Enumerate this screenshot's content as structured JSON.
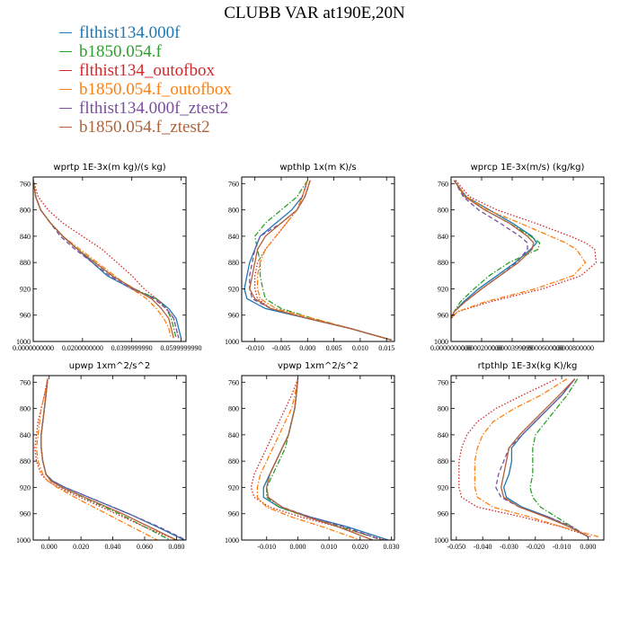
{
  "figure": {
    "title": "CLUBB VAR at190E,20N",
    "legend": [
      {
        "name": "flthist134.000f",
        "color": "#1f77b4"
      },
      {
        "name": "b1850.054.f",
        "color": "#2ca02c"
      },
      {
        "name": "flthist134_outofbox",
        "color": "#d62728"
      },
      {
        "name": "b1850.054.f_outofbox",
        "color": "#ff7f0e"
      },
      {
        "name": "flthist134.000f_ztest2",
        "color": "#7b4ea0"
      },
      {
        "name": "b1850.054.f_ztest2",
        "color": "#b0623a"
      }
    ]
  },
  "chart_data": [
    {
      "id": "wprtp",
      "type": "line",
      "title": "wprtp  1E-3x(m kg)/(s kg)",
      "xlim": [
        0,
        0.062
      ],
      "ylim": [
        1000,
        750
      ],
      "grid": false,
      "xticks": [
        0,
        0.02,
        0.04,
        0.06
      ],
      "xticklabels": [
        "0.0000000000",
        "0.0200000000",
        "0.0399999990",
        "0.0599999990"
      ],
      "yticks": [
        760,
        800,
        840,
        880,
        920,
        960,
        1000
      ],
      "yticklabels": [
        "760",
        "800",
        "840",
        "880",
        "920",
        "960",
        "1000"
      ],
      "y": [
        755,
        780,
        800,
        820,
        840,
        860,
        880,
        900,
        920,
        935,
        950,
        965,
        980,
        995
      ],
      "series": [
        {
          "color": "#1f77b4",
          "dash": "solid",
          "x": [
            0.0,
            0.001,
            0.003,
            0.007,
            0.012,
            0.018,
            0.024,
            0.03,
            0.04,
            0.05,
            0.055,
            0.058,
            0.059,
            0.06
          ]
        },
        {
          "color": "#2ca02c",
          "dash": "dashdot",
          "x": [
            0.0,
            0.001,
            0.003,
            0.007,
            0.012,
            0.018,
            0.025,
            0.032,
            0.041,
            0.05,
            0.054,
            0.056,
            0.057,
            0.058
          ]
        },
        {
          "color": "#d62728",
          "dash": "dot",
          "x": [
            0.0,
            0.002,
            0.006,
            0.012,
            0.02,
            0.028,
            0.034,
            0.04,
            0.045,
            0.05,
            0.054,
            0.057,
            0.058,
            0.059
          ]
        },
        {
          "color": "#ff7f0e",
          "dash": "dashdot",
          "x": [
            0.0,
            0.001,
            0.003,
            0.007,
            0.012,
            0.019,
            0.026,
            0.033,
            0.04,
            0.046,
            0.05,
            0.053,
            0.055,
            0.056
          ]
        },
        {
          "color": "#7b4ea0",
          "dash": "dash",
          "x": [
            0.0,
            0.001,
            0.003,
            0.007,
            0.011,
            0.017,
            0.024,
            0.031,
            0.04,
            0.049,
            0.054,
            0.057,
            0.058,
            0.059
          ]
        },
        {
          "color": "#b0623a",
          "dash": "solid",
          "x": [
            0.0,
            0.001,
            0.003,
            0.007,
            0.012,
            0.018,
            0.025,
            0.032,
            0.041,
            0.048,
            0.052,
            0.055,
            0.056,
            0.057
          ]
        }
      ]
    },
    {
      "id": "wpthlp",
      "type": "line",
      "title": "wpthlp  1x(m K)/s",
      "xlim": [
        -0.0125,
        0.0165
      ],
      "ylim": [
        1000,
        750
      ],
      "grid": false,
      "xticks": [
        -0.01,
        -0.005,
        0,
        0.005,
        0.01,
        0.015
      ],
      "xticklabels": [
        "-0.010",
        "-0.005",
        "0.000",
        "0.005",
        "0.010",
        "0.015"
      ],
      "yticks": [
        760,
        800,
        840,
        880,
        920,
        960,
        1000
      ],
      "yticklabels": [
        "760",
        "800",
        "840",
        "880",
        "920",
        "960",
        "1000"
      ],
      "y": [
        755,
        780,
        800,
        820,
        840,
        860,
        880,
        900,
        920,
        935,
        950,
        965,
        980,
        998
      ],
      "series": [
        {
          "color": "#1f77b4",
          "dash": "solid",
          "x": [
            0.0,
            -0.001,
            -0.003,
            -0.006,
            -0.009,
            -0.01,
            -0.011,
            -0.0115,
            -0.012,
            -0.0115,
            -0.008,
            0.0,
            0.008,
            0.016
          ]
        },
        {
          "color": "#2ca02c",
          "dash": "dashdot",
          "x": [
            0.0,
            -0.002,
            -0.005,
            -0.008,
            -0.01,
            -0.0095,
            -0.009,
            -0.009,
            -0.0085,
            -0.008,
            -0.005,
            0.001,
            0.008,
            0.016
          ]
        },
        {
          "color": "#d62728",
          "dash": "dot",
          "x": [
            0.0,
            -0.001,
            -0.002,
            -0.004,
            -0.006,
            -0.008,
            -0.0095,
            -0.01,
            -0.01,
            -0.0095,
            -0.007,
            0.0,
            0.008,
            0.016
          ]
        },
        {
          "color": "#ff7f0e",
          "dash": "dashdot",
          "x": [
            0.0,
            -0.001,
            -0.002,
            -0.004,
            -0.006,
            -0.008,
            -0.009,
            -0.0095,
            -0.0095,
            -0.009,
            -0.006,
            0.001,
            0.008,
            0.016
          ]
        },
        {
          "color": "#7b4ea0",
          "dash": "dash",
          "x": [
            0.0005,
            -0.0005,
            -0.002,
            -0.005,
            -0.009,
            -0.01,
            -0.0105,
            -0.011,
            -0.011,
            -0.0105,
            -0.007,
            0.0,
            0.008,
            0.016
          ]
        },
        {
          "color": "#b0623a",
          "dash": "solid",
          "x": [
            0.0005,
            -0.0005,
            -0.002,
            -0.005,
            -0.008,
            -0.0095,
            -0.01,
            -0.0105,
            -0.011,
            -0.01,
            -0.007,
            0.0,
            0.008,
            0.016
          ]
        }
      ]
    },
    {
      "id": "wprcp",
      "type": "line",
      "title": "wprcp  1E-3x(m/s) (kg/kg)",
      "xlim": [
        0,
        0.0001
      ],
      "ylim": [
        1000,
        750
      ],
      "grid": false,
      "xticks": [
        0,
        2e-05,
        4e-05,
        6e-05,
        8e-05
      ],
      "xticklabels": [
        "0.0000000000",
        "0.0000200000",
        "0.0000399999",
        "0.0000600000",
        "0.0000800000"
      ],
      "yticks": [
        760,
        800,
        840,
        880,
        920,
        960,
        1000
      ],
      "yticklabels": [
        "760",
        "800",
        "840",
        "880",
        "920",
        "960",
        "1000"
      ],
      "y": [
        755,
        780,
        800,
        820,
        840,
        850,
        860,
        880,
        900,
        920,
        940,
        955,
        965
      ],
      "series": [
        {
          "color": "#1f77b4",
          "dash": "solid",
          "x": [
            2e-06,
            1e-05,
            2.5e-05,
            4e-05,
            5.3e-05,
            5.6e-05,
            5.2e-05,
            4.2e-05,
            3e-05,
            1.8e-05,
            8e-06,
            2e-06,
            0.0
          ]
        },
        {
          "color": "#2ca02c",
          "dash": "dashdot",
          "x": [
            2e-06,
            1e-05,
            2.2e-05,
            3.8e-05,
            5.2e-05,
            5.8e-05,
            5.7e-05,
            3.8e-05,
            2.5e-05,
            1.5e-05,
            6e-06,
            2e-06,
            0.0
          ]
        },
        {
          "color": "#d62728",
          "dash": "dot",
          "x": [
            3e-06,
            1.2e-05,
            3e-05,
            5.5e-05,
            7.8e-05,
            8.8e-05,
            9.4e-05,
            9.5e-05,
            8.5e-05,
            6e-05,
            2.5e-05,
            4e-06,
            0.0
          ]
        },
        {
          "color": "#ff7f0e",
          "dash": "dashdot",
          "x": [
            2e-06,
            1e-05,
            2.4e-05,
            4.5e-05,
            6.5e-05,
            7.5e-05,
            8.2e-05,
            8.8e-05,
            8e-05,
            5.5e-05,
            2.2e-05,
            4e-06,
            0.0
          ]
        },
        {
          "color": "#7b4ea0",
          "dash": "dash",
          "x": [
            2e-06,
            8e-06,
            1.8e-05,
            3.2e-05,
            4.5e-05,
            5e-05,
            5e-05,
            4.3e-05,
            3.2e-05,
            2e-05,
            9e-06,
            2e-06,
            0.0
          ]
        },
        {
          "color": "#b0623a",
          "dash": "solid",
          "x": [
            2e-06,
            9e-06,
            2.2e-05,
            3.8e-05,
            5e-05,
            5.4e-05,
            5.3e-05,
            4.4e-05,
            3.2e-05,
            2e-05,
            9e-06,
            2e-06,
            0.0
          ]
        }
      ]
    },
    {
      "id": "upwp",
      "type": "line",
      "title": "upwp  1xm^2/s^2",
      "xlim": [
        -0.01,
        0.086
      ],
      "ylim": [
        1000,
        750
      ],
      "grid": false,
      "xticks": [
        0,
        0.02,
        0.04,
        0.06,
        0.08
      ],
      "xticklabels": [
        "0.000",
        "0.020",
        "0.040",
        "0.060",
        "0.080"
      ],
      "yticks": [
        760,
        800,
        840,
        880,
        920,
        960,
        1000
      ],
      "yticklabels": [
        "760",
        "800",
        "840",
        "880",
        "920",
        "960",
        "1000"
      ],
      "y": [
        755,
        780,
        800,
        820,
        840,
        860,
        880,
        900,
        910,
        920,
        940,
        960,
        980,
        1000
      ],
      "series": [
        {
          "color": "#1f77b4",
          "dash": "solid",
          "x": [
            -0.001,
            -0.002,
            -0.003,
            -0.004,
            -0.005,
            -0.005,
            -0.004,
            -0.002,
            0.002,
            0.01,
            0.03,
            0.05,
            0.068,
            0.085
          ]
        },
        {
          "color": "#2ca02c",
          "dash": "dashdot",
          "x": [
            -0.001,
            -0.002,
            -0.003,
            -0.004,
            -0.005,
            -0.005,
            -0.004,
            -0.002,
            0.001,
            0.008,
            0.026,
            0.044,
            0.06,
            0.076
          ]
        },
        {
          "color": "#d62728",
          "dash": "dot",
          "x": [
            -0.001,
            -0.003,
            -0.005,
            -0.007,
            -0.008,
            -0.009,
            -0.008,
            -0.005,
            -0.001,
            0.006,
            0.024,
            0.042,
            0.06,
            0.08
          ]
        },
        {
          "color": "#ff7f0e",
          "dash": "dashdot",
          "x": [
            -0.001,
            -0.003,
            -0.005,
            -0.006,
            -0.007,
            -0.008,
            -0.007,
            -0.004,
            -0.001,
            0.005,
            0.02,
            0.036,
            0.052,
            0.068
          ]
        },
        {
          "color": "#7b4ea0",
          "dash": "dash",
          "x": [
            -0.001,
            -0.002,
            -0.003,
            -0.004,
            -0.005,
            -0.005,
            -0.004,
            -0.002,
            0.002,
            0.01,
            0.03,
            0.05,
            0.069,
            0.086
          ]
        },
        {
          "color": "#b0623a",
          "dash": "solid",
          "x": [
            -0.001,
            -0.002,
            -0.003,
            -0.004,
            -0.005,
            -0.005,
            -0.004,
            -0.002,
            0.001,
            0.008,
            0.027,
            0.046,
            0.063,
            0.08
          ]
        }
      ]
    },
    {
      "id": "vpwp",
      "type": "line",
      "title": "vpwp  1xm^2/s^2",
      "xlim": [
        -0.018,
        0.031
      ],
      "ylim": [
        1000,
        750
      ],
      "grid": false,
      "xticks": [
        -0.01,
        0,
        0.01,
        0.02,
        0.03
      ],
      "xticklabels": [
        "-0.010",
        "0.000",
        "0.010",
        "0.020",
        "0.030"
      ],
      "yticks": [
        760,
        800,
        840,
        880,
        920,
        960,
        1000
      ],
      "yticklabels": [
        "760",
        "800",
        "840",
        "880",
        "920",
        "960",
        "1000"
      ],
      "y": [
        755,
        780,
        800,
        820,
        840,
        860,
        880,
        900,
        920,
        935,
        950,
        965,
        980,
        1000
      ],
      "series": [
        {
          "color": "#1f77b4",
          "dash": "solid",
          "x": [
            0.0,
            -0.0005,
            -0.001,
            -0.002,
            -0.003,
            -0.005,
            -0.007,
            -0.009,
            -0.011,
            -0.011,
            -0.006,
            0.004,
            0.016,
            0.029
          ]
        },
        {
          "color": "#2ca02c",
          "dash": "dashdot",
          "x": [
            0.0,
            -0.0005,
            -0.001,
            -0.002,
            -0.003,
            -0.004,
            -0.006,
            -0.008,
            -0.01,
            -0.01,
            -0.006,
            0.003,
            0.014,
            0.027
          ]
        },
        {
          "color": "#d62728",
          "dash": "dot",
          "x": [
            0.0,
            -0.002,
            -0.004,
            -0.006,
            -0.008,
            -0.01,
            -0.012,
            -0.014,
            -0.015,
            -0.014,
            -0.009,
            0.001,
            0.013,
            0.028
          ]
        },
        {
          "color": "#ff7f0e",
          "dash": "dashdot",
          "x": [
            0.0,
            -0.001,
            -0.002,
            -0.004,
            -0.006,
            -0.008,
            -0.01,
            -0.012,
            -0.013,
            -0.013,
            -0.01,
            -0.002,
            0.008,
            0.02
          ]
        },
        {
          "color": "#7b4ea0",
          "dash": "dash",
          "x": [
            0.0,
            -0.0005,
            -0.001,
            -0.002,
            -0.003,
            -0.005,
            -0.007,
            -0.009,
            -0.01,
            -0.0095,
            -0.005,
            0.004,
            0.015,
            0.027
          ]
        },
        {
          "color": "#b0623a",
          "dash": "solid",
          "x": [
            0.0,
            -0.0005,
            -0.001,
            -0.002,
            -0.003,
            -0.005,
            -0.007,
            -0.009,
            -0.01,
            -0.0095,
            -0.005,
            0.003,
            0.013,
            0.024
          ]
        }
      ]
    },
    {
      "id": "rtpthlp",
      "type": "line",
      "title": "rtpthlp  1E-3x(kg K)/kg",
      "xlim": [
        -0.052,
        0.006
      ],
      "ylim": [
        1000,
        750
      ],
      "grid": false,
      "xticks": [
        -0.05,
        -0.04,
        -0.03,
        -0.02,
        -0.01,
        0
      ],
      "xticklabels": [
        "-0.050",
        "-0.040",
        "-0.030",
        "-0.020",
        "-0.010",
        "0.000"
      ],
      "yticks": [
        760,
        800,
        840,
        880,
        920,
        960,
        1000
      ],
      "yticklabels": [
        "760",
        "800",
        "840",
        "880",
        "920",
        "960",
        "1000"
      ],
      "y": [
        755,
        780,
        800,
        820,
        840,
        860,
        880,
        900,
        920,
        935,
        950,
        965,
        980,
        995
      ],
      "series": [
        {
          "color": "#1f77b4",
          "dash": "solid",
          "x": [
            -0.005,
            -0.01,
            -0.015,
            -0.02,
            -0.025,
            -0.029,
            -0.029,
            -0.03,
            -0.032,
            -0.031,
            -0.025,
            -0.015,
            -0.007,
            0.0
          ]
        },
        {
          "color": "#2ca02c",
          "dash": "dashdot",
          "x": [
            -0.004,
            -0.008,
            -0.012,
            -0.016,
            -0.02,
            -0.021,
            -0.021,
            -0.021,
            -0.022,
            -0.021,
            -0.018,
            -0.012,
            -0.006,
            0.0
          ]
        },
        {
          "color": "#d62728",
          "dash": "dot",
          "x": [
            -0.012,
            -0.025,
            -0.035,
            -0.042,
            -0.046,
            -0.048,
            -0.049,
            -0.049,
            -0.049,
            -0.048,
            -0.042,
            -0.025,
            -0.01,
            0.001
          ]
        },
        {
          "color": "#ff7f0e",
          "dash": "dashdot",
          "x": [
            -0.008,
            -0.018,
            -0.028,
            -0.036,
            -0.04,
            -0.042,
            -0.043,
            -0.043,
            -0.043,
            -0.042,
            -0.036,
            -0.022,
            -0.01,
            0.004
          ]
        },
        {
          "color": "#7b4ea0",
          "dash": "dash",
          "x": [
            -0.005,
            -0.01,
            -0.015,
            -0.02,
            -0.025,
            -0.03,
            -0.032,
            -0.034,
            -0.035,
            -0.033,
            -0.026,
            -0.015,
            -0.006,
            0.0
          ]
        },
        {
          "color": "#b0623a",
          "dash": "solid",
          "x": [
            -0.005,
            -0.011,
            -0.016,
            -0.021,
            -0.026,
            -0.03,
            -0.031,
            -0.032,
            -0.033,
            -0.032,
            -0.026,
            -0.016,
            -0.007,
            0.0
          ]
        }
      ]
    }
  ]
}
